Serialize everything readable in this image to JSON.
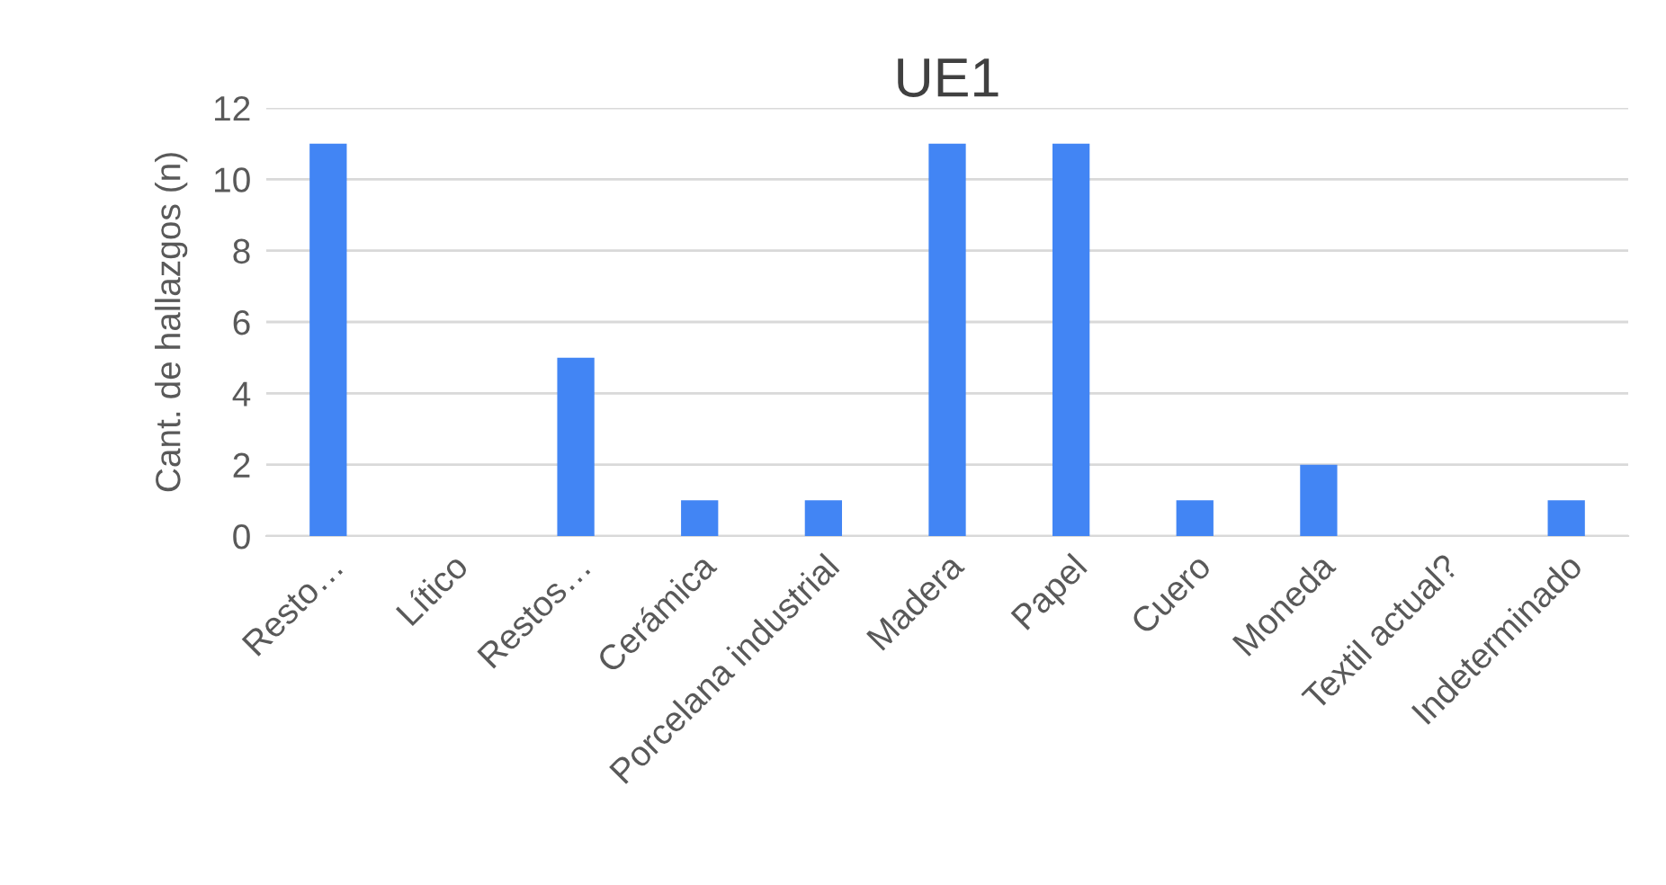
{
  "chart_data": {
    "type": "bar",
    "title": "UE1",
    "ylabel": "Cant. de hallazgos (n)",
    "categories": [
      "Resto…",
      "Lítico",
      "Restos…",
      "Cerámica",
      "Porcelana industrial",
      "Madera",
      "Papel",
      "Cuero",
      "Moneda",
      "Textil actual?",
      "Indeterminado"
    ],
    "values": [
      11,
      0,
      5,
      1,
      1,
      11,
      11,
      1,
      2,
      0,
      1
    ],
    "color": "#4285f4",
    "ylim": [
      0,
      12
    ],
    "yticks": [
      0,
      2,
      4,
      6,
      8,
      10,
      12
    ],
    "grid": "y",
    "legend": false
  }
}
